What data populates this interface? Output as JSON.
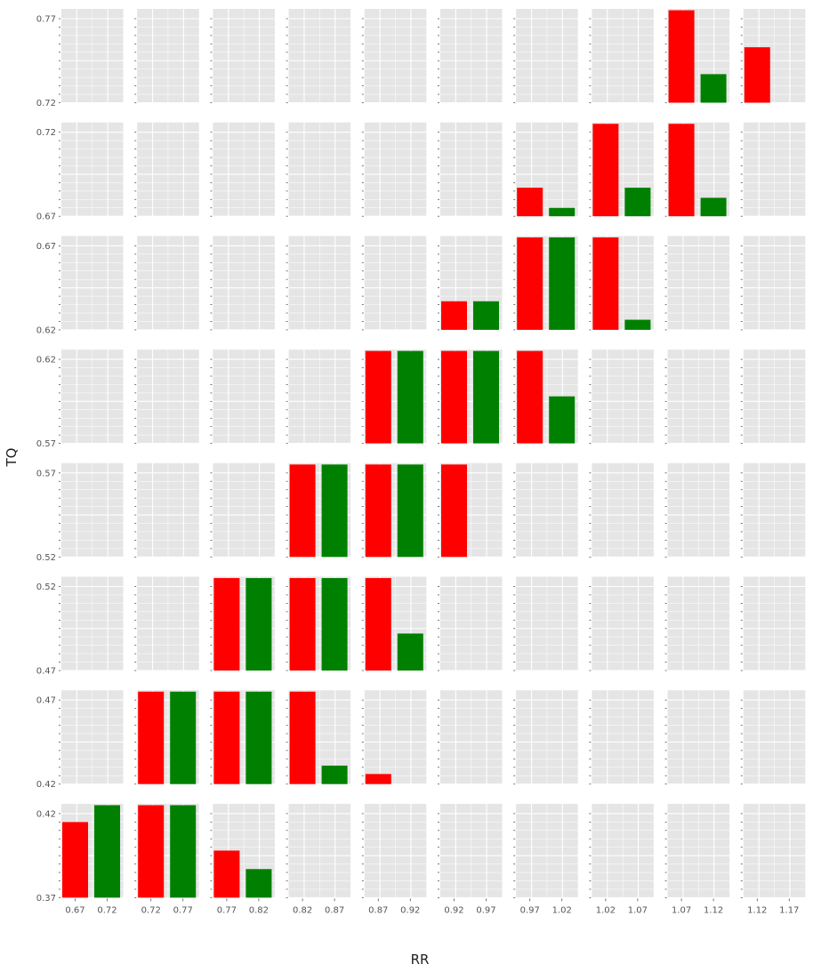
{
  "chart_data": {
    "type": "bar",
    "layout": "facet-grid",
    "xlabel": "RR",
    "ylabel": "TQ",
    "grid": true,
    "colors": {
      "panel_bg": "#e5e5e5",
      "grid": "#ffffff",
      "series_a": "#ff0000",
      "series_b": "#008000"
    },
    "columns": [
      {
        "x_ticks": [
          "0.67",
          "0.72"
        ]
      },
      {
        "x_ticks": [
          "0.72",
          "0.77"
        ]
      },
      {
        "x_ticks": [
          "0.77",
          "0.82"
        ]
      },
      {
        "x_ticks": [
          "0.82",
          "0.87"
        ]
      },
      {
        "x_ticks": [
          "0.87",
          "0.92"
        ]
      },
      {
        "x_ticks": [
          "0.92",
          "0.97"
        ]
      },
      {
        "x_ticks": [
          "0.97",
          "1.02"
        ]
      },
      {
        "x_ticks": [
          "1.02",
          "1.07"
        ]
      },
      {
        "x_ticks": [
          "1.07",
          "1.12"
        ]
      },
      {
        "x_ticks": [
          "1.12",
          "1.17"
        ]
      }
    ],
    "rows": [
      {
        "ylim": [
          0.72,
          0.77
        ],
        "y_ticks": [
          "0.72",
          "0.77"
        ],
        "cells": [
          null,
          null,
          null,
          null,
          null,
          null,
          null,
          null,
          [
            0.775,
            0.737
          ],
          [
            0.753,
            null
          ]
        ]
      },
      {
        "ylim": [
          0.67,
          0.72
        ],
        "y_ticks": [
          "0.67",
          "0.72"
        ],
        "cells": [
          null,
          null,
          null,
          null,
          null,
          null,
          [
            0.687,
            0.675
          ],
          [
            0.725,
            0.687
          ],
          [
            0.725,
            0.681
          ],
          null
        ]
      },
      {
        "ylim": [
          0.62,
          0.67
        ],
        "y_ticks": [
          "0.62",
          "0.67"
        ],
        "cells": [
          null,
          null,
          null,
          null,
          null,
          [
            0.637,
            0.637
          ],
          [
            0.675,
            0.675
          ],
          [
            0.675,
            0.626
          ],
          null,
          null
        ]
      },
      {
        "ylim": [
          0.57,
          0.62
        ],
        "y_ticks": [
          "0.57",
          "0.62"
        ],
        "cells": [
          null,
          null,
          null,
          null,
          [
            0.625,
            0.625
          ],
          [
            0.625,
            0.625
          ],
          [
            0.625,
            0.598
          ],
          null,
          null,
          null
        ]
      },
      {
        "ylim": [
          0.52,
          0.57
        ],
        "y_ticks": [
          "0.52",
          "0.57"
        ],
        "cells": [
          null,
          null,
          null,
          [
            0.575,
            0.575
          ],
          [
            0.575,
            0.575
          ],
          [
            0.575,
            null
          ],
          null,
          null,
          null,
          null
        ]
      },
      {
        "ylim": [
          0.47,
          0.52
        ],
        "y_ticks": [
          "0.47",
          "0.52"
        ],
        "cells": [
          null,
          null,
          [
            0.525,
            0.525
          ],
          [
            0.525,
            0.525
          ],
          [
            0.525,
            0.492
          ],
          null,
          null,
          null,
          null,
          null
        ]
      },
      {
        "ylim": [
          0.42,
          0.47
        ],
        "y_ticks": [
          "0.42",
          "0.47"
        ],
        "cells": [
          null,
          [
            0.475,
            0.475
          ],
          [
            0.475,
            0.475
          ],
          [
            0.475,
            0.431
          ],
          [
            0.426,
            null
          ],
          null,
          null,
          null,
          null,
          null
        ]
      },
      {
        "ylim": [
          0.37,
          0.42
        ],
        "y_ticks": [
          "0.37",
          "0.42"
        ],
        "cells": [
          [
            0.415,
            0.425
          ],
          [
            0.425,
            0.425
          ],
          [
            0.398,
            0.387
          ],
          null,
          null,
          null,
          null,
          null,
          null,
          null
        ]
      }
    ]
  }
}
